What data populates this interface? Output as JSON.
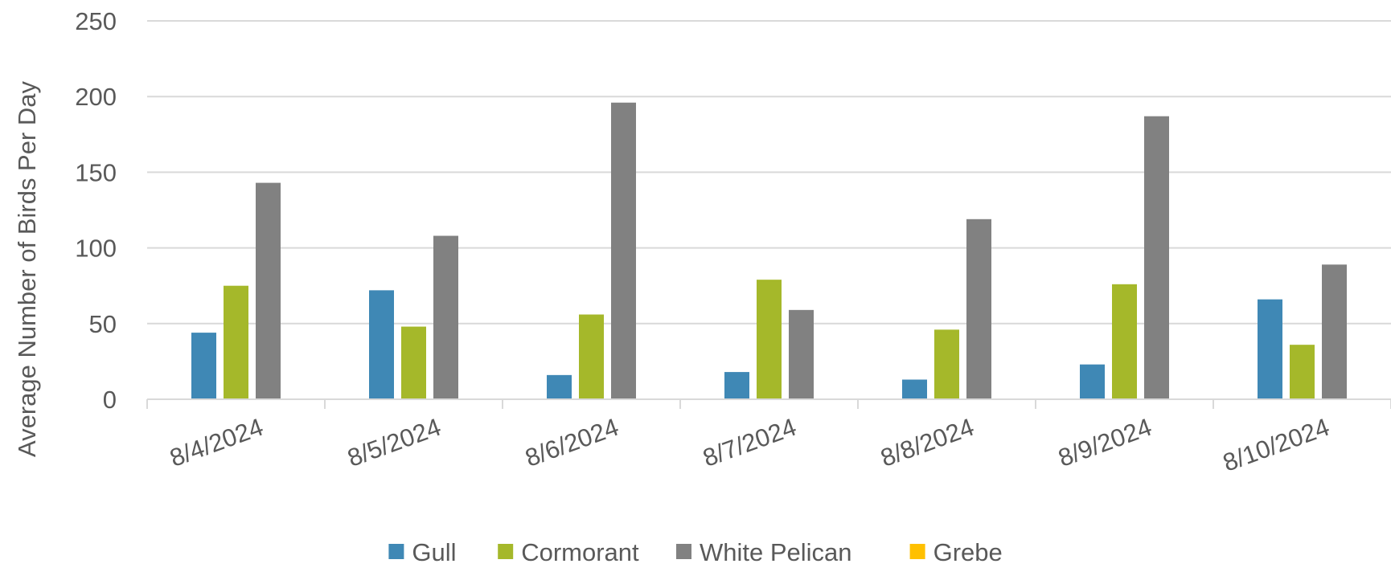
{
  "chart_data": {
    "type": "bar",
    "title": "",
    "xlabel": "",
    "ylabel": "Average Number of Birds Per Day",
    "ylim": [
      0,
      250
    ],
    "yticks": [
      0,
      50,
      100,
      150,
      200,
      250
    ],
    "grid": true,
    "legend_position": "bottom",
    "categories": [
      "8/4/2024",
      "8/5/2024",
      "8/6/2024",
      "8/7/2024",
      "8/8/2024",
      "8/9/2024",
      "8/10/2024"
    ],
    "series": [
      {
        "name": "Gull",
        "color": "#3F88B5",
        "values": [
          44,
          72,
          16,
          18,
          13,
          23,
          66
        ]
      },
      {
        "name": "Cormorant",
        "color": "#A5B82A",
        "values": [
          75,
          48,
          56,
          79,
          46,
          76,
          36
        ]
      },
      {
        "name": "White Pelican",
        "color": "#818181",
        "values": [
          143,
          108,
          196,
          59,
          119,
          187,
          89
        ]
      },
      {
        "name": "Grebe",
        "color": "#FFC000",
        "values": [
          0,
          0,
          0,
          0,
          0,
          0,
          0
        ]
      }
    ]
  }
}
